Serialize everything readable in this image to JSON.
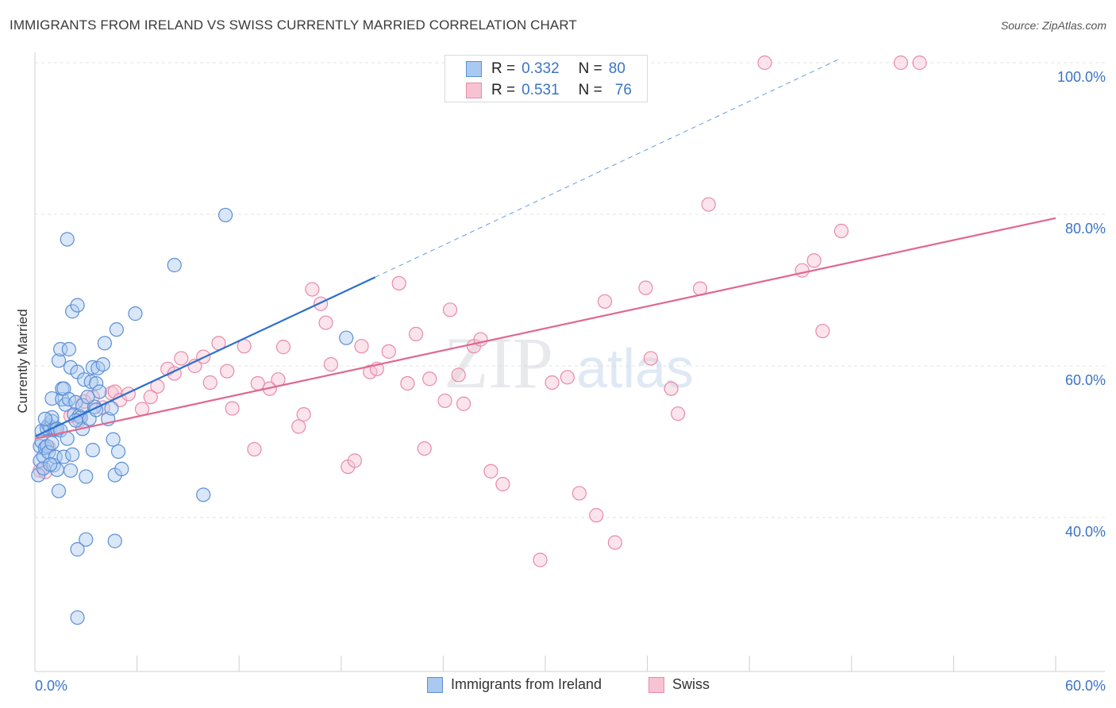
{
  "title": "IMMIGRANTS FROM IRELAND VS SWISS CURRENTLY MARRIED CORRELATION CHART",
  "source": "Source: ZipAtlas.com",
  "legend": {
    "r_label": "R =",
    "n_label": "N =",
    "series": [
      {
        "name": "Immigrants from Ireland",
        "r": "0.332",
        "n": "80"
      },
      {
        "name": "Swiss",
        "r": "0.531",
        "n": "76"
      }
    ]
  },
  "watermark": {
    "zip": "ZIP",
    "atlas": "atlas"
  },
  "colors": {
    "blue_fill": "#aac9f0",
    "blue_stroke": "#5b8fd6",
    "blue_line": "#2a6fd0",
    "pink_fill": "#f7c3d2",
    "pink_stroke": "#e88aa8",
    "pink_line": "#e06790",
    "axis_text": "#3a74c7",
    "grid": "#e3e3e3"
  },
  "chart_data": {
    "type": "scatter",
    "title": "IMMIGRANTS FROM IRELAND VS SWISS CURRENTLY MARRIED CORRELATION CHART",
    "xlabel": "",
    "ylabel": "Currently Married",
    "xlim": [
      0,
      60
    ],
    "ylim": [
      20,
      102
    ],
    "x_tick_labels": [
      {
        "value": 0,
        "label": "0.0%"
      },
      {
        "value": 60,
        "label": "60.0%"
      }
    ],
    "y_tick_labels": [
      {
        "value": 40,
        "label": "40.0%"
      },
      {
        "value": 60,
        "label": "60.0%"
      },
      {
        "value": 80,
        "label": "80.0%"
      },
      {
        "value": 100,
        "label": "100.0%"
      }
    ],
    "series": [
      {
        "name": "Immigrants from Ireland",
        "r": 0.332,
        "n": 80,
        "trend": {
          "x0": 0,
          "y0": 50.7,
          "x1": 20,
          "y1": 71.7,
          "dashed_to_x": 47.3,
          "dashed_to_y": 100.5
        },
        "points": [
          [
            0.2,
            45.6
          ],
          [
            0.3,
            47.5
          ],
          [
            0.3,
            49.4
          ],
          [
            0.4,
            51.4
          ],
          [
            0.4,
            50.0
          ],
          [
            0.5,
            46.5
          ],
          [
            0.5,
            48.1
          ],
          [
            0.6,
            49.2
          ],
          [
            0.7,
            49.4
          ],
          [
            0.7,
            51.8
          ],
          [
            0.8,
            52.2
          ],
          [
            0.8,
            48.6
          ],
          [
            0.9,
            51.9
          ],
          [
            1.0,
            52.7
          ],
          [
            1.0,
            53.2
          ],
          [
            1.0,
            55.7
          ],
          [
            1.1,
            46.9
          ],
          [
            1.2,
            48.0
          ],
          [
            1.2,
            51.6
          ],
          [
            1.3,
            51.7
          ],
          [
            1.3,
            46.3
          ],
          [
            1.4,
            43.5
          ],
          [
            1.4,
            60.7
          ],
          [
            1.5,
            62.2
          ],
          [
            1.6,
            55.6
          ],
          [
            1.6,
            57.0
          ],
          [
            1.7,
            57.0
          ],
          [
            1.7,
            48.0
          ],
          [
            1.8,
            54.9
          ],
          [
            1.9,
            76.7
          ],
          [
            2.0,
            55.6
          ],
          [
            2.0,
            62.2
          ],
          [
            2.1,
            46.2
          ],
          [
            2.1,
            59.8
          ],
          [
            2.2,
            67.2
          ],
          [
            2.3,
            53.6
          ],
          [
            2.4,
            55.2
          ],
          [
            2.5,
            68.0
          ],
          [
            2.5,
            59.2
          ],
          [
            2.6,
            53.4
          ],
          [
            2.7,
            53.2
          ],
          [
            2.8,
            51.7
          ],
          [
            2.8,
            54.8
          ],
          [
            2.9,
            58.2
          ],
          [
            3.0,
            45.4
          ],
          [
            3.0,
            37.1
          ],
          [
            3.2,
            53.0
          ],
          [
            3.3,
            57.9
          ],
          [
            3.4,
            48.9
          ],
          [
            3.4,
            59.8
          ],
          [
            3.5,
            54.6
          ],
          [
            3.6,
            57.7
          ],
          [
            3.6,
            54.2
          ],
          [
            3.7,
            59.7
          ],
          [
            3.8,
            56.6
          ],
          [
            4.0,
            60.2
          ],
          [
            4.1,
            63.0
          ],
          [
            4.3,
            53.0
          ],
          [
            4.5,
            54.4
          ],
          [
            4.6,
            50.3
          ],
          [
            4.7,
            45.6
          ],
          [
            4.7,
            36.9
          ],
          [
            4.8,
            64.8
          ],
          [
            4.9,
            48.7
          ],
          [
            5.1,
            46.4
          ],
          [
            5.9,
            66.9
          ],
          [
            8.2,
            73.3
          ],
          [
            9.9,
            43.0
          ],
          [
            11.2,
            79.9
          ],
          [
            18.3,
            63.7
          ],
          [
            2.5,
            35.8
          ],
          [
            2.5,
            26.8
          ],
          [
            1.0,
            49.8
          ],
          [
            1.5,
            51.5
          ],
          [
            0.9,
            47.0
          ],
          [
            2.2,
            48.3
          ],
          [
            3.1,
            55.9
          ],
          [
            0.6,
            53.0
          ],
          [
            1.9,
            50.4
          ],
          [
            2.4,
            52.8
          ]
        ]
      },
      {
        "name": "Swiss",
        "r": 0.531,
        "n": 76,
        "trend": {
          "x0": 0,
          "y0": 50.4,
          "x1": 60,
          "y1": 79.5
        },
        "points": [
          [
            0.3,
            46.2
          ],
          [
            0.6,
            46.0
          ],
          [
            0.8,
            49.3
          ],
          [
            1.1,
            51.6
          ],
          [
            2.1,
            53.4
          ],
          [
            2.6,
            52.8
          ],
          [
            2.9,
            55.3
          ],
          [
            3.4,
            55.9
          ],
          [
            4.0,
            54.5
          ],
          [
            4.5,
            56.4
          ],
          [
            4.7,
            56.6
          ],
          [
            5.0,
            55.5
          ],
          [
            5.5,
            56.3
          ],
          [
            6.3,
            54.3
          ],
          [
            6.8,
            55.9
          ],
          [
            7.2,
            57.3
          ],
          [
            7.8,
            59.6
          ],
          [
            8.2,
            59.0
          ],
          [
            8.6,
            61.0
          ],
          [
            9.4,
            60.0
          ],
          [
            9.9,
            61.2
          ],
          [
            10.3,
            57.8
          ],
          [
            10.8,
            63.0
          ],
          [
            11.3,
            59.3
          ],
          [
            11.6,
            54.4
          ],
          [
            12.3,
            62.6
          ],
          [
            12.9,
            49.0
          ],
          [
            13.1,
            57.7
          ],
          [
            13.8,
            57.0
          ],
          [
            14.3,
            58.2
          ],
          [
            14.6,
            62.5
          ],
          [
            15.5,
            52.0
          ],
          [
            15.8,
            53.6
          ],
          [
            16.3,
            70.1
          ],
          [
            16.8,
            68.2
          ],
          [
            17.1,
            65.7
          ],
          [
            17.4,
            60.2
          ],
          [
            18.4,
            46.7
          ],
          [
            18.8,
            47.5
          ],
          [
            19.2,
            62.6
          ],
          [
            19.7,
            59.2
          ],
          [
            20.1,
            59.6
          ],
          [
            20.8,
            61.9
          ],
          [
            21.4,
            70.9
          ],
          [
            21.9,
            57.7
          ],
          [
            22.4,
            64.2
          ],
          [
            22.9,
            49.1
          ],
          [
            23.2,
            58.3
          ],
          [
            24.1,
            55.4
          ],
          [
            24.4,
            67.4
          ],
          [
            24.9,
            58.8
          ],
          [
            25.2,
            55.0
          ],
          [
            25.8,
            62.6
          ],
          [
            26.2,
            63.5
          ],
          [
            26.8,
            46.1
          ],
          [
            27.5,
            44.4
          ],
          [
            29.7,
            34.4
          ],
          [
            30.4,
            57.8
          ],
          [
            31.3,
            58.5
          ],
          [
            32.0,
            43.2
          ],
          [
            33.0,
            40.3
          ],
          [
            33.5,
            68.5
          ],
          [
            34.1,
            36.7
          ],
          [
            35.9,
            70.3
          ],
          [
            36.2,
            61.0
          ],
          [
            37.4,
            57.0
          ],
          [
            37.8,
            53.7
          ],
          [
            39.1,
            70.2
          ],
          [
            39.6,
            81.3
          ],
          [
            42.9,
            100.0
          ],
          [
            45.1,
            72.6
          ],
          [
            45.8,
            73.9
          ],
          [
            46.3,
            64.6
          ],
          [
            47.4,
            77.8
          ],
          [
            50.9,
            100.0
          ],
          [
            52.0,
            100.0
          ]
        ]
      }
    ]
  }
}
